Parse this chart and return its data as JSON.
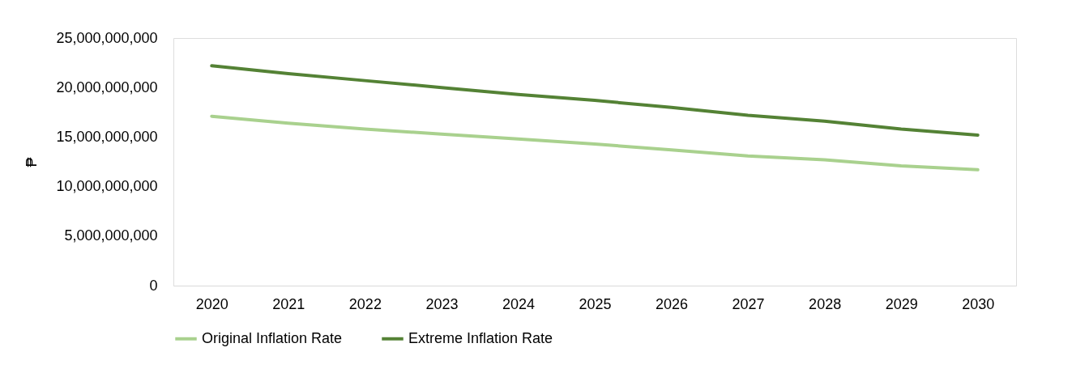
{
  "chart_data": {
    "type": "line",
    "ylabel": "₱",
    "categories": [
      "2020",
      "2021",
      "2022",
      "2023",
      "2024",
      "2025",
      "2026",
      "2027",
      "2028",
      "2029",
      "2030"
    ],
    "series": [
      {
        "name": "Original Inflation Rate",
        "color": "#a9d18e",
        "values": [
          17100000000,
          16400000000,
          15800000000,
          15300000000,
          14800000000,
          14300000000,
          13700000000,
          13100000000,
          12700000000,
          12100000000,
          11700000000
        ]
      },
      {
        "name": "Extreme Inflation Rate",
        "color": "#548235",
        "values": [
          22200000000,
          21400000000,
          20700000000,
          20000000000,
          19300000000,
          18700000000,
          18000000000,
          17200000000,
          16600000000,
          15800000000,
          15200000000
        ]
      }
    ],
    "ylim": [
      0,
      25000000000
    ],
    "yticks": [
      0,
      {
        "value": 5000000000,
        "label": "5,000,000,000"
      },
      {
        "value": 10000000000,
        "label": "10,000,000,000"
      },
      {
        "value": 15000000000,
        "label": "15,000,000,000"
      },
      {
        "value": 20000000000,
        "label": "20,000,000,000"
      },
      {
        "value": 25000000000,
        "label": "25,000,000,000"
      }
    ],
    "grid": false,
    "legend": "bottom",
    "marker": "none",
    "line_style": "solid"
  }
}
